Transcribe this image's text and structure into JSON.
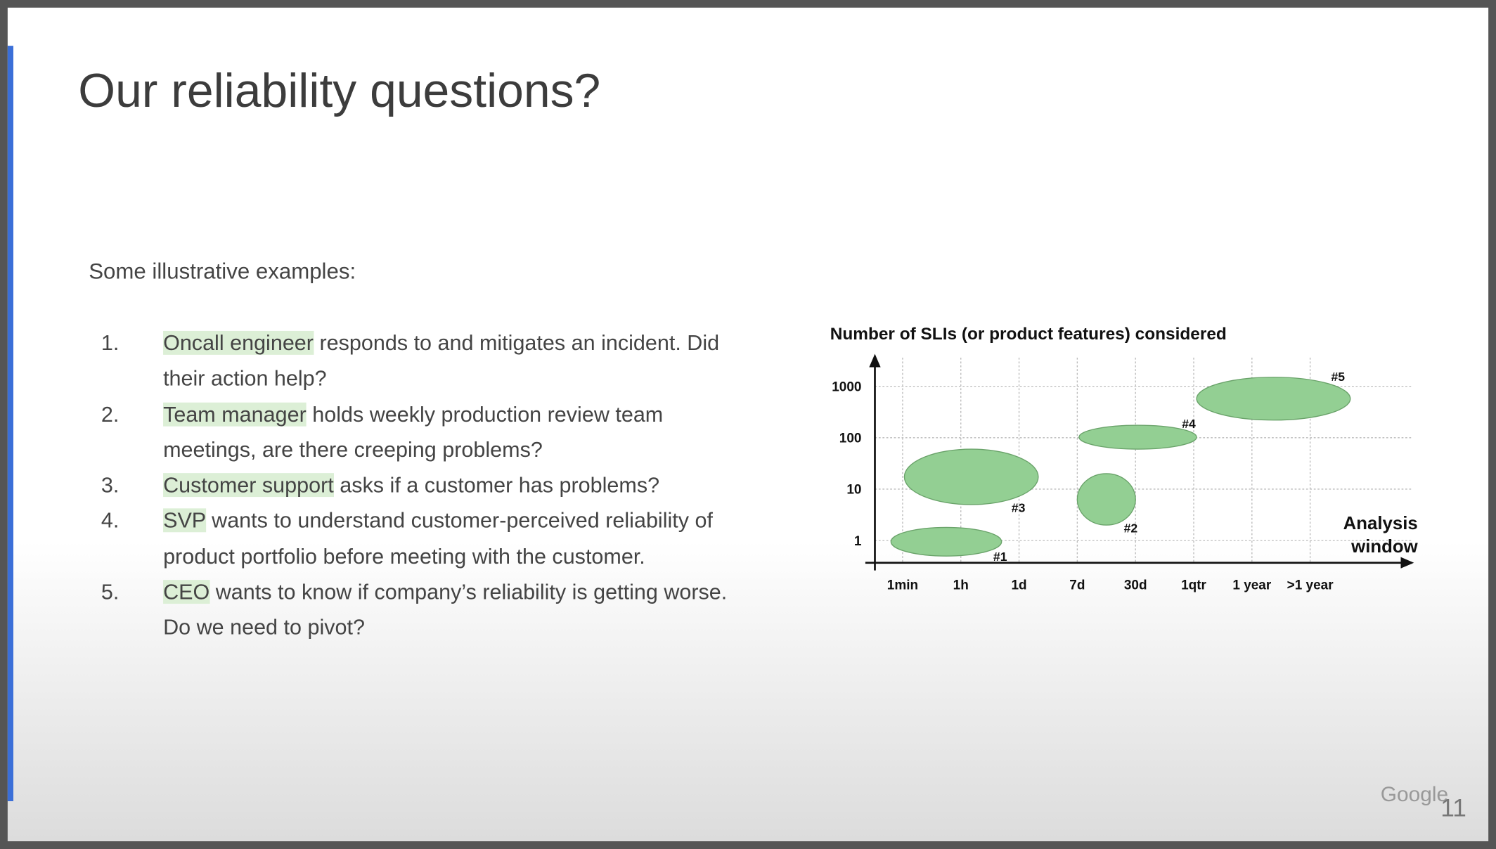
{
  "slide": {
    "title": "Our reliability questions?",
    "intro": "Some illustrative examples:",
    "items": [
      {
        "number": "1.",
        "role": "Oncall engineer",
        "text": "responds to and mitigates an incident. Did their action help?"
      },
      {
        "number": "2.",
        "role": "Team manager",
        "text": "holds weekly production review team meetings, are there creeping problems?"
      },
      {
        "number": "3.",
        "role": "Customer support",
        "text": "asks if a customer has problems?"
      },
      {
        "number": "4.",
        "role": "SVP",
        "text": "wants to understand customer-perceived reliability of product portfolio before meeting with the customer."
      },
      {
        "number": "5.",
        "role": "CEO",
        "text": "wants to know if company’s reliability is getting worse. Do we need to pivot?"
      }
    ],
    "logo": "Google",
    "page_number": "11"
  },
  "chart_data": {
    "type": "ellipse",
    "title": "Number of SLIs (or product features) considered",
    "x_label": "Analysis window",
    "xlim": [
      -0.64,
      8.75
    ],
    "xticks": [
      {
        "value": 0,
        "label": "1min"
      },
      {
        "value": 1,
        "label": "1h"
      },
      {
        "value": 2,
        "label": "1d"
      },
      {
        "value": 3,
        "label": "7d"
      },
      {
        "value": 4,
        "label": "30d"
      },
      {
        "value": 5,
        "label": "1qtr"
      },
      {
        "value": 6,
        "label": "1 year"
      },
      {
        "value": 7,
        "label": ">1 year"
      }
    ],
    "ylim": [
      0.37,
      3600
    ],
    "yticks": [
      1,
      10,
      100,
      1000
    ],
    "log_y": true,
    "grid": true,
    "color": "#93cf93",
    "series": [
      {
        "name": "#1",
        "x": [
          -0.2,
          1.7
        ],
        "y": [
          0.5,
          1.8
        ]
      },
      {
        "name": "#2",
        "x": [
          3.0,
          4.0
        ],
        "y": [
          2,
          20
        ]
      },
      {
        "name": "#3",
        "x": [
          0.03,
          2.33
        ],
        "y": [
          5,
          60
        ]
      },
      {
        "name": "#4",
        "x": [
          3.03,
          5.05
        ],
        "y": [
          60,
          175
        ]
      },
      {
        "name": "#5",
        "x": [
          5.05,
          7.69
        ],
        "y": [
          220,
          1500
        ]
      }
    ]
  }
}
